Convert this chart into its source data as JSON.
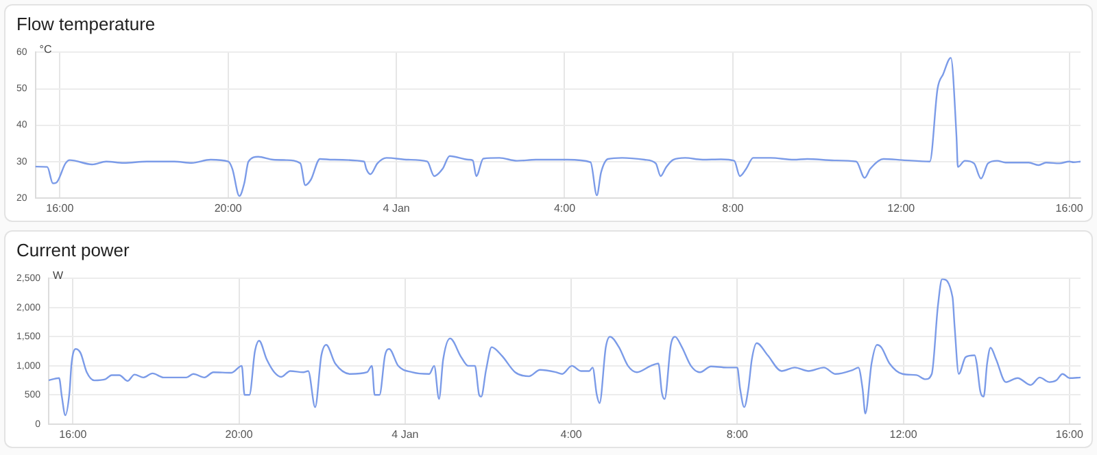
{
  "chart_data": [
    {
      "type": "line",
      "title": "Flow temperature",
      "ylabel": "°C",
      "grid": true,
      "legend": false,
      "marker": "none",
      "line_style": "solid",
      "xlim": [
        "--01-03T15:25",
        "--01-04T16:16"
      ],
      "xticks": [
        {
          "value": "--01-03T16:00",
          "label": "16:00"
        },
        {
          "value": "--01-03T20:00",
          "label": "20:00"
        },
        {
          "value": "--01-04T00:00",
          "label": "4 Jan"
        },
        {
          "value": "--01-04T04:00",
          "label": "4:00"
        },
        {
          "value": "--01-04T08:00",
          "label": "8:00"
        },
        {
          "value": "--01-04T12:00",
          "label": "12:00"
        },
        {
          "value": "--01-04T16:00",
          "label": "16:00"
        }
      ],
      "ylim": [
        20,
        60
      ],
      "yticks": [
        20,
        30,
        40,
        50,
        60
      ],
      "series": [
        {
          "color": "#7b9be8",
          "x": [
            "--01-03T15:25",
            "--01-03T15:42",
            "--01-03T15:50",
            "--01-03T15:55",
            "--01-03T16:08",
            "--01-03T16:14",
            "--01-03T16:46",
            "--01-03T17:06",
            "--01-03T17:31",
            "--01-03T18:04",
            "--01-03T18:43",
            "--01-03T19:08",
            "--01-03T19:35",
            "--01-03T20:00",
            "--01-03T20:06",
            "--01-03T20:16",
            "--01-03T20:23",
            "--01-03T20:29",
            "--01-03T20:43",
            "--01-03T21:04",
            "--01-03T21:23",
            "--01-03T21:43",
            "--01-03T21:50",
            "--01-03T21:58",
            "--01-03T22:11",
            "--01-03T22:29",
            "--01-03T23:14",
            "--01-03T23:17",
            "--01-03T23:23",
            "--01-03T23:33",
            "--01-03T23:46",
            "--01-04T00:17",
            "--01-04T00:44",
            "--01-04T00:54",
            "--01-04T01:06",
            "--01-04T01:16",
            "--01-04T01:43",
            "--01-04T01:49",
            "--01-04T01:54",
            "--01-04T02:04",
            "--01-04T02:27",
            "--01-04T02:52",
            "--01-04T03:19",
            "--01-04T03:44",
            "--01-04T04:04",
            "--01-04T04:37",
            "--01-04T04:46",
            "--01-04T04:52",
            "--01-04T05:02",
            "--01-04T05:22",
            "--01-04T05:54",
            "--01-04T06:10",
            "--01-04T06:17",
            "--01-04T06:25",
            "--01-04T06:35",
            "--01-04T06:52",
            "--01-04T07:17",
            "--01-04T07:43",
            "--01-04T08:02",
            "--01-04T08:10",
            "--01-04T08:19",
            "--01-04T08:29",
            "--01-04T08:54",
            "--01-04T09:27",
            "--01-04T09:46",
            "--01-04T10:25",
            "--01-04T10:56",
            "--01-04T11:08",
            "--01-04T11:16",
            "--01-04T11:35",
            "--01-04T12:02",
            "--01-04T12:41",
            "--01-04T12:52",
            "--01-04T13:00",
            "--01-04T13:11",
            "--01-04T13:19",
            "--01-04T13:21",
            "--01-04T13:31",
            "--01-04T13:44",
            "--01-04T13:54",
            "--01-04T14:04",
            "--01-04T14:17",
            "--01-04T14:29",
            "--01-04T15:02",
            "--01-04T15:16",
            "--01-04T15:27",
            "--01-04T15:46",
            "--01-04T16:00",
            "--01-04T16:06",
            "--01-04T16:16"
          ],
          "values": [
            28.6,
            28.5,
            24,
            24.2,
            29.5,
            30.4,
            29.2,
            30,
            29.6,
            30,
            30,
            29.6,
            30.5,
            30,
            28,
            20.5,
            24,
            30,
            31.3,
            30.5,
            30.4,
            29.5,
            23.5,
            25,
            30.7,
            30.5,
            30,
            28,
            26.5,
            29.5,
            31,
            30.5,
            30,
            26,
            28,
            31.5,
            30.5,
            30.3,
            26,
            30.8,
            31,
            30.2,
            30.5,
            30.5,
            30.5,
            29.8,
            20.7,
            27,
            30.7,
            31,
            30.5,
            29.5,
            26,
            28.5,
            30.5,
            31,
            30.5,
            30.6,
            30.2,
            26,
            28,
            31,
            31,
            30.5,
            30.7,
            30.3,
            30,
            25.5,
            28,
            30.7,
            30.4,
            30,
            50,
            54,
            58.5,
            37,
            28.5,
            30.2,
            29.5,
            25.3,
            29.5,
            30.2,
            29.7,
            29.7,
            29,
            29.7,
            29.5,
            30,
            29.8,
            30
          ]
        }
      ]
    },
    {
      "type": "line",
      "title": "Current power",
      "ylabel": "W",
      "grid": true,
      "legend": false,
      "marker": "none",
      "line_style": "solid",
      "xlim": [
        "--01-03T15:25",
        "--01-04T16:16"
      ],
      "xticks": [
        {
          "value": "--01-03T16:00",
          "label": "16:00"
        },
        {
          "value": "--01-03T20:00",
          "label": "20:00"
        },
        {
          "value": "--01-04T00:00",
          "label": "4 Jan"
        },
        {
          "value": "--01-04T04:00",
          "label": "4:00"
        },
        {
          "value": "--01-04T08:00",
          "label": "8:00"
        },
        {
          "value": "--01-04T12:00",
          "label": "12:00"
        },
        {
          "value": "--01-04T16:00",
          "label": "16:00"
        }
      ],
      "ylim": [
        0,
        2500
      ],
      "yticks": [
        0,
        500,
        {
          "value": 1000,
          "label": "1,000"
        },
        {
          "value": 1500,
          "label": "1,500"
        },
        {
          "value": 2000,
          "label": "2,000"
        },
        {
          "value": 2500,
          "label": "2,500"
        }
      ],
      "series": [
        {
          "color": "#7b9be8",
          "x": [
            "--01-03T15:25",
            "--01-03T15:40",
            "--01-03T15:44",
            "--01-03T15:49",
            "--01-03T15:55",
            "--01-03T15:58",
            "--01-03T16:04",
            "--01-03T16:11",
            "--01-03T16:20",
            "--01-03T16:31",
            "--01-03T16:47",
            "--01-03T16:56",
            "--01-03T17:07",
            "--01-03T17:19",
            "--01-03T17:29",
            "--01-03T17:42",
            "--01-03T17:55",
            "--01-03T18:11",
            "--01-03T18:44",
            "--01-03T18:54",
            "--01-03T19:10",
            "--01-03T19:23",
            "--01-03T19:49",
            "--01-03T20:04",
            "--01-03T20:08",
            "--01-03T20:15",
            "--01-03T20:23",
            "--01-03T20:29",
            "--01-03T20:40",
            "--01-03T20:51",
            "--01-03T21:01",
            "--01-03T21:14",
            "--01-03T21:33",
            "--01-03T21:40",
            "--01-03T21:50",
            "--01-03T21:59",
            "--01-03T22:06",
            "--01-03T22:19",
            "--01-03T22:41",
            "--01-03T23:05",
            "--01-03T23:12",
            "--01-03T23:16",
            "--01-03T23:23",
            "--01-03T23:31",
            "--01-03T23:37",
            "--01-03T23:50",
            "--01-04T00:10",
            "--01-04T00:35",
            "--01-04T00:42",
            "--01-04T00:49",
            "--01-04T00:55",
            "--01-04T01:05",
            "--01-04T01:21",
            "--01-04T01:31",
            "--01-04T01:41",
            "--01-04T01:47",
            "--01-04T01:50",
            "--01-04T01:57",
            "--01-04T02:05",
            "--01-04T02:20",
            "--01-04T02:39",
            "--01-04T02:59",
            "--01-04T03:15",
            "--01-04T03:38",
            "--01-04T03:47",
            "--01-04T04:01",
            "--01-04T04:14",
            "--01-04T04:26",
            "--01-04T04:31",
            "--01-04T04:37",
            "--01-04T04:41",
            "--01-04T04:50",
            "--01-04T04:56",
            "--01-04T05:09",
            "--01-04T05:22",
            "--01-04T05:35",
            "--01-04T05:55",
            "--01-04T06:06",
            "--01-04T06:11",
            "--01-04T06:15",
            "--01-04T06:24",
            "--01-04T06:30",
            "--01-04T06:40",
            "--01-04T06:53",
            "--01-04T07:06",
            "--01-04T07:22",
            "--01-04T07:45",
            "--01-04T08:00",
            "--01-04T08:04",
            "--01-04T08:10",
            "--01-04T08:16",
            "--01-04T08:21",
            "--01-04T08:28",
            "--01-04T08:44",
            "--01-04T09:04",
            "--01-04T09:23",
            "--01-04T09:43",
            "--01-04T10:05",
            "--01-04T10:22",
            "--01-04T10:47",
            "--01-04T10:55",
            "--01-04T11:01",
            "--01-04T11:05",
            "--01-04T11:14",
            "--01-04T11:22",
            "--01-04T11:28",
            "--01-04T11:40",
            "--01-04T11:59",
            "--01-04T12:19",
            "--01-04T12:32",
            "--01-04T12:41",
            "--01-04T12:50",
            "--01-04T12:56",
            "--01-04T13:11",
            "--01-04T13:14",
            "--01-04T13:20",
            "--01-04T13:30",
            "--01-04T13:43",
            "--01-04T13:46",
            "--01-04T13:51",
            "--01-04T13:56",
            "--01-04T14:01",
            "--01-04T14:06",
            "--01-04T14:14",
            "--01-04T14:28",
            "--01-04T14:45",
            "--01-04T15:04",
            "--01-04T15:17",
            "--01-04T15:31",
            "--01-04T15:41",
            "--01-04T15:50",
            "--01-04T16:00",
            "--01-04T16:16"
          ],
          "values": [
            750,
            790,
            470,
            150,
            540,
            1040,
            1290,
            1220,
            890,
            750,
            770,
            840,
            840,
            740,
            850,
            800,
            870,
            800,
            800,
            860,
            800,
            890,
            880,
            1000,
            500,
            500,
            1250,
            1430,
            1110,
            890,
            810,
            910,
            890,
            910,
            290,
            1180,
            1360,
            1040,
            860,
            890,
            1000,
            500,
            500,
            1180,
            1290,
            1000,
            890,
            860,
            1000,
            430,
            1110,
            1470,
            1150,
            1000,
            1000,
            500,
            470,
            930,
            1320,
            1170,
            890,
            820,
            930,
            890,
            860,
            1000,
            910,
            910,
            970,
            500,
            360,
            1320,
            1500,
            1320,
            1000,
            890,
            1000,
            1040,
            540,
            430,
            1360,
            1500,
            1320,
            1000,
            890,
            990,
            970,
            970,
            610,
            290,
            610,
            1110,
            1390,
            1180,
            910,
            970,
            910,
            970,
            860,
            930,
            970,
            610,
            180,
            1040,
            1360,
            1320,
            1040,
            860,
            840,
            770,
            860,
            2040,
            2490,
            2180,
            1680,
            860,
            1150,
            1180,
            1040,
            570,
            470,
            1040,
            1310,
            1110,
            720,
            790,
            670,
            800,
            720,
            750,
            860,
            790,
            800
          ]
        }
      ]
    }
  ]
}
